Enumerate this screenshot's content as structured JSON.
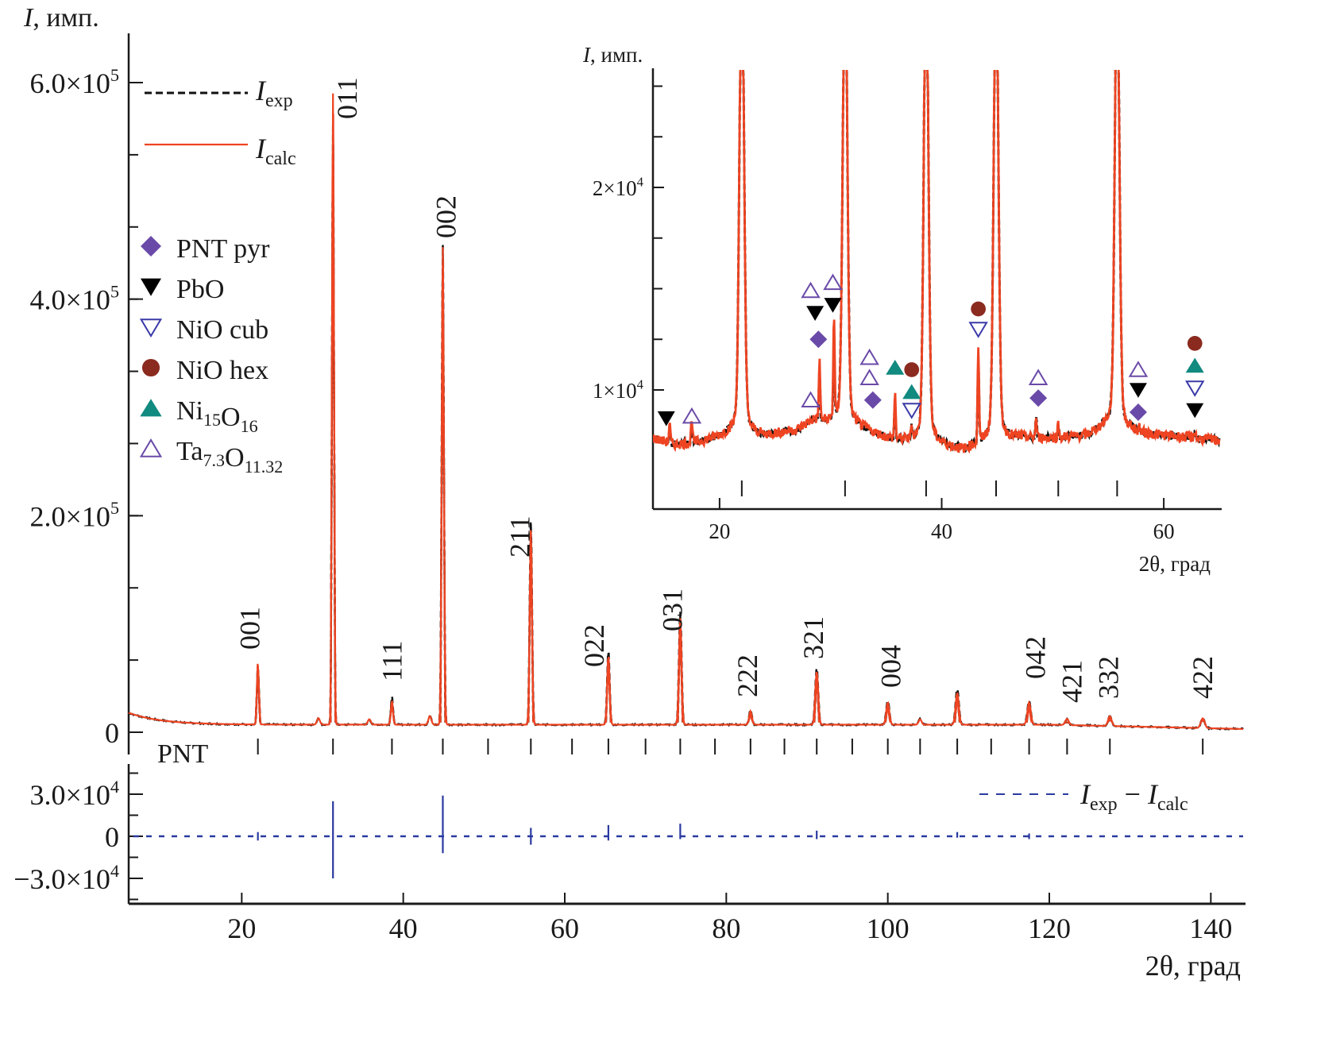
{
  "chart_data": [
    {
      "id": "main",
      "type": "line",
      "title": "",
      "ylabel": "I, имп.",
      "ylabel_italic": "I",
      "ylabel_rest": ", имп.",
      "xlabel": "2θ, град",
      "xlim": [
        6,
        144
      ],
      "ylim": [
        -5000,
        640000
      ],
      "xticks": [
        20,
        40,
        60,
        80,
        100,
        120,
        140
      ],
      "xtick_labels": [
        "20",
        "40",
        "60",
        "80",
        "100",
        "120",
        "140"
      ],
      "yticks": [
        0,
        200000,
        400000,
        600000
      ],
      "ytick_labels": [
        {
          "mant": "0",
          "exp": ""
        },
        {
          "mant": "2.0×10",
          "exp": "5"
        },
        {
          "mant": "4.0×10",
          "exp": "5"
        },
        {
          "mant": "6.0×10",
          "exp": "5"
        }
      ],
      "y_minor_step": 66667,
      "series": [
        {
          "name": "I_exp",
          "label_main": "I",
          "label_sub": "exp",
          "style": "dashed",
          "color": "#111111"
        },
        {
          "name": "I_calc",
          "label_main": "I",
          "label_sub": "calc",
          "style": "solid",
          "color": "#ee4422"
        }
      ],
      "background": {
        "start_value": 18000,
        "base_value": 7000,
        "end_value": 3000
      },
      "peaks": [
        {
          "x": 22.0,
          "calc": 62000,
          "exp": 60000,
          "hkl": "001"
        },
        {
          "x": 31.3,
          "calc": 590000,
          "exp": 560000,
          "hkl": "011"
        },
        {
          "x": 38.6,
          "calc": 26000,
          "exp": 30000,
          "hkl": "111"
        },
        {
          "x": 44.9,
          "calc": 448000,
          "exp": 450000,
          "hkl": "002"
        },
        {
          "x": 55.8,
          "calc": 185000,
          "exp": 193000,
          "hkl": "211"
        },
        {
          "x": 65.4,
          "calc": 68000,
          "exp": 73000,
          "hkl": "022"
        },
        {
          "x": 74.3,
          "calc": 102000,
          "exp": 108000,
          "hkl": "031"
        },
        {
          "x": 83.0,
          "calc": 16000,
          "exp": 17000,
          "hkl": "222"
        },
        {
          "x": 91.2,
          "calc": 53000,
          "exp": 56000,
          "hkl": "321"
        },
        {
          "x": 100.0,
          "calc": 24000,
          "exp": 26000,
          "hkl": "004"
        },
        {
          "x": 108.6,
          "calc": 33000,
          "exp": 37000,
          "hkl": ""
        },
        {
          "x": 117.5,
          "calc": 24000,
          "exp": 26000,
          "hkl": "042"
        },
        {
          "x": 122.2,
          "calc": 9000,
          "exp": 9000,
          "hkl": "421"
        },
        {
          "x": 127.5,
          "calc": 12000,
          "exp": 12000,
          "hkl": "332"
        },
        {
          "x": 139.0,
          "calc": 11000,
          "exp": 11000,
          "hkl": "422"
        }
      ],
      "minor_peaks": [
        {
          "x": 29.5,
          "value": 6000
        },
        {
          "x": 35.8,
          "value": 5000
        },
        {
          "x": 43.3,
          "value": 8000
        },
        {
          "x": 104.0,
          "value": 5000
        }
      ],
      "phase_label": "PNT",
      "bragg_ticks": [
        22.0,
        31.3,
        38.6,
        44.9,
        50.5,
        55.8,
        60.9,
        65.4,
        70.0,
        74.3,
        78.6,
        83.0,
        87.2,
        91.2,
        95.6,
        100.0,
        104.0,
        108.6,
        112.8,
        117.5,
        122.2,
        127.5,
        139.0
      ],
      "legend": {
        "placement": "top-left"
      },
      "phase_legend": [
        {
          "name": "PNT pyr",
          "parts": [
            {
              "t": "PNT pyr",
              "s": ""
            }
          ],
          "marker": "diamond",
          "color": "#6a4aa8",
          "fill": true
        },
        {
          "name": "PbO",
          "parts": [
            {
              "t": "PbO",
              "s": ""
            }
          ],
          "marker": "triangle-down",
          "color": "#000000",
          "fill": true
        },
        {
          "name": "NiO cub",
          "parts": [
            {
              "t": "NiO cub",
              "s": ""
            }
          ],
          "marker": "triangle-down",
          "color": "#3a3aa8",
          "fill": false
        },
        {
          "name": "NiO hex",
          "parts": [
            {
              "t": "NiO hex",
              "s": ""
            }
          ],
          "marker": "circle",
          "color": "#8b2a1f",
          "fill": true
        },
        {
          "name": "Ni15O16",
          "parts": [
            {
              "t": "Ni",
              "s": "15"
            },
            {
              "t": "O",
              "s": "16"
            }
          ],
          "marker": "triangle-up",
          "color": "#118a80",
          "fill": true
        },
        {
          "name": "Ta7.3O11.32",
          "parts": [
            {
              "t": "Ta",
              "s": "7.3"
            },
            {
              "t": "O",
              "s": "11.32"
            }
          ],
          "marker": "triangle-up",
          "color": "#6a4aa8",
          "fill": false
        }
      ]
    },
    {
      "id": "difference",
      "type": "line",
      "ylim": [
        -45000,
        45000
      ],
      "yticks": [
        30000,
        0,
        -30000
      ],
      "ytick_labels": [
        {
          "mant": "3.0×10",
          "exp": "4"
        },
        {
          "mant": "0",
          "exp": ""
        },
        {
          "mant": "−3.0×10",
          "exp": "4"
        }
      ],
      "y_minor_step": 15000,
      "series": [
        {
          "name": "I_exp − I_calc",
          "label_a": "I",
          "sub_a": "exp",
          "minus": " − ",
          "label_b": "I",
          "sub_b": "calc",
          "style": "dashed",
          "color": "#2a3aa0"
        }
      ],
      "spikes": [
        {
          "x": 22.0,
          "up": 3000,
          "down": -3000
        },
        {
          "x": 31.3,
          "up": 25000,
          "down": -30000
        },
        {
          "x": 44.9,
          "up": 29000,
          "down": -12000
        },
        {
          "x": 55.8,
          "up": 6000,
          "down": -6000
        },
        {
          "x": 65.4,
          "up": 8000,
          "down": -3000
        },
        {
          "x": 74.3,
          "up": 9000,
          "down": -2000
        },
        {
          "x": 91.2,
          "up": 4000,
          "down": -2000
        },
        {
          "x": 108.6,
          "up": 3000,
          "down": -1000
        },
        {
          "x": 117.5,
          "up": 2000,
          "down": -2000
        }
      ]
    },
    {
      "id": "inset",
      "type": "line",
      "ylabel": "I, имп.",
      "ylabel_italic": "I",
      "ylabel_rest": ", имп.",
      "xlabel": "2θ, град",
      "xlim": [
        14,
        65
      ],
      "ylim": [
        6000,
        26000
      ],
      "xticks": [
        20,
        40,
        60
      ],
      "xtick_labels": [
        "20",
        "40",
        "60"
      ],
      "yticks": [
        10000,
        20000
      ],
      "ytick_labels": [
        {
          "mant": "1×10",
          "exp": "4"
        },
        {
          "mant": "2×10",
          "exp": "4"
        }
      ],
      "y_minor_step": 2500,
      "background_points": [
        [
          14,
          7600
        ],
        [
          16,
          7300
        ],
        [
          18,
          7400
        ],
        [
          21,
          7800
        ],
        [
          24,
          7700
        ],
        [
          27,
          8000
        ],
        [
          28.5,
          8500
        ],
        [
          33,
          8000
        ],
        [
          35,
          7600
        ],
        [
          37,
          7400
        ],
        [
          40,
          7200
        ],
        [
          42,
          7000
        ],
        [
          43.5,
          7300
        ],
        [
          47,
          7600
        ],
        [
          50,
          7600
        ],
        [
          53,
          7700
        ],
        [
          55,
          8200
        ],
        [
          58,
          7800
        ],
        [
          61,
          7700
        ],
        [
          65,
          7500
        ]
      ],
      "peaks": [
        {
          "x": 15.5,
          "calc": 8300,
          "exp": 8000
        },
        {
          "x": 17.5,
          "calc": 8600,
          "exp": 8300
        },
        {
          "x": 22.0,
          "calc": 30000,
          "exp": 30000
        },
        {
          "x": 29.0,
          "calc": 11400,
          "exp": 10700
        },
        {
          "x": 30.3,
          "calc": 13400,
          "exp": 11500
        },
        {
          "x": 31.3,
          "calc": 30000,
          "exp": 30000
        },
        {
          "x": 35.8,
          "calc": 9700,
          "exp": 9200
        },
        {
          "x": 37.3,
          "calc": 8000,
          "exp": 8000
        },
        {
          "x": 38.6,
          "calc": 30000,
          "exp": 30000
        },
        {
          "x": 43.3,
          "calc": 12000,
          "exp": 11200
        },
        {
          "x": 44.9,
          "calc": 30000,
          "exp": 30000
        },
        {
          "x": 48.5,
          "calc": 8500,
          "exp": 8600
        },
        {
          "x": 50.5,
          "calc": 8300,
          "exp": 8000
        },
        {
          "x": 55.8,
          "calc": 30000,
          "exp": 30000
        },
        {
          "x": 57.8,
          "calc": 8100,
          "exp": 8000
        },
        {
          "x": 62.8,
          "calc": 8000,
          "exp": 7900
        }
      ],
      "bragg_ticks": [
        22.0,
        31.3,
        38.6,
        44.9,
        50.5,
        55.8
      ],
      "markers": [
        {
          "x": 15.2,
          "y": 8600,
          "marker": "triangle-down",
          "phase": "PbO"
        },
        {
          "x": 17.5,
          "y": 8700,
          "marker": "triangle-up-open",
          "phase": "Ta7.3O11.32"
        },
        {
          "x": 28.2,
          "y": 9500,
          "marker": "triangle-up-open",
          "phase": "Ta7.3O11.32"
        },
        {
          "x": 28.2,
          "y": 14900,
          "marker": "triangle-up-open",
          "phase": "Ta7.3O11.32"
        },
        {
          "x": 28.6,
          "y": 13800,
          "marker": "triangle-down",
          "phase": "PbO"
        },
        {
          "x": 28.9,
          "y": 12500,
          "marker": "diamond",
          "phase": "PNT pyr"
        },
        {
          "x": 30.2,
          "y": 15300,
          "marker": "triangle-up-open",
          "phase": "Ta7.3O11.32"
        },
        {
          "x": 30.2,
          "y": 14200,
          "marker": "triangle-down",
          "phase": "PbO"
        },
        {
          "x": 33.5,
          "y": 11600,
          "marker": "triangle-up-open",
          "phase": "Ta7.3O11.32"
        },
        {
          "x": 33.5,
          "y": 10600,
          "marker": "triangle-up-open",
          "phase": "Ta7.3O11.32"
        },
        {
          "x": 33.8,
          "y": 9500,
          "marker": "diamond",
          "phase": "PNT pyr"
        },
        {
          "x": 35.8,
          "y": 11100,
          "marker": "triangle-up",
          "phase": "Ni15O16"
        },
        {
          "x": 37.3,
          "y": 11000,
          "marker": "circle",
          "phase": "NiO hex"
        },
        {
          "x": 37.3,
          "y": 9900,
          "marker": "triangle-up",
          "phase": "Ni15O16"
        },
        {
          "x": 37.3,
          "y": 9000,
          "marker": "triangle-down-open",
          "phase": "NiO cub"
        },
        {
          "x": 43.3,
          "y": 14000,
          "marker": "circle",
          "phase": "NiO hex"
        },
        {
          "x": 43.3,
          "y": 13000,
          "marker": "triangle-down-open",
          "phase": "NiO cub"
        },
        {
          "x": 48.7,
          "y": 10600,
          "marker": "triangle-up-open",
          "phase": "Ta7.3O11.32"
        },
        {
          "x": 48.7,
          "y": 9600,
          "marker": "diamond",
          "phase": "PNT pyr"
        },
        {
          "x": 57.7,
          "y": 11000,
          "marker": "triangle-up-open",
          "phase": "Ta7.3O11.32"
        },
        {
          "x": 57.7,
          "y": 10000,
          "marker": "triangle-down",
          "phase": "PbO"
        },
        {
          "x": 57.7,
          "y": 8900,
          "marker": "diamond",
          "phase": "PNT pyr"
        },
        {
          "x": 62.8,
          "y": 12300,
          "marker": "circle",
          "phase": "NiO hex"
        },
        {
          "x": 62.8,
          "y": 11200,
          "marker": "triangle-up",
          "phase": "Ni15O16"
        },
        {
          "x": 62.8,
          "y": 10100,
          "marker": "triangle-down-open",
          "phase": "NiO cub"
        },
        {
          "x": 62.8,
          "y": 9000,
          "marker": "triangle-down",
          "phase": "PbO"
        }
      ]
    }
  ],
  "colors": {
    "calc": "#ee4422",
    "exp": "#111111",
    "diff": "#2a3aa0",
    "axis": "#1a1a1a",
    "pnt_pyr": "#6a4aa8",
    "pbo": "#000000",
    "nio_cub": "#3a3aa8",
    "nio_hex": "#8b2a1f",
    "ni15o16": "#118a80",
    "ta": "#6a4aa8"
  }
}
